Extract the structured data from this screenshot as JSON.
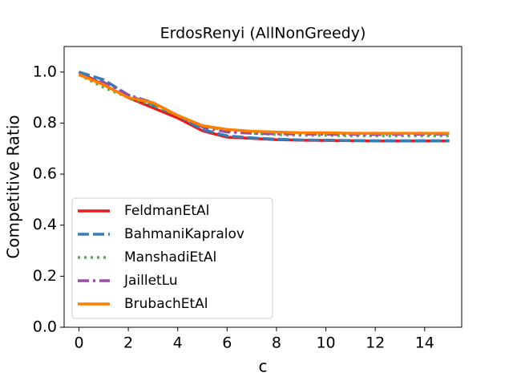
{
  "chart_data": {
    "type": "line",
    "title": "ErdosRenyi (AllNonGreedy)",
    "x_label": "c",
    "y_label": "Competitive Ratio",
    "x": [
      0,
      1,
      2,
      3,
      4,
      5,
      6,
      7,
      8,
      9,
      10,
      11,
      12,
      13,
      14,
      15
    ],
    "series": [
      {
        "name": "FeldmanEtAl",
        "color": "#e41a1c",
        "dash": "solid",
        "values": [
          1.0,
          0.95,
          0.9,
          0.86,
          0.82,
          0.77,
          0.745,
          0.74,
          0.735,
          0.733,
          0.732,
          0.731,
          0.73,
          0.73,
          0.73,
          0.73
        ]
      },
      {
        "name": "BahmaniKapralov",
        "color": "#377eb8",
        "dash": "dashed",
        "values": [
          1.0,
          0.97,
          0.91,
          0.87,
          0.83,
          0.775,
          0.75,
          0.742,
          0.737,
          0.734,
          0.733,
          0.732,
          0.731,
          0.731,
          0.731,
          0.731
        ]
      },
      {
        "name": "ManshadiEtAl",
        "color": "#4daf4a",
        "dash": "dotted",
        "values": [
          0.99,
          0.94,
          0.9,
          0.87,
          0.83,
          0.79,
          0.77,
          0.76,
          0.755,
          0.752,
          0.752,
          0.75,
          0.75,
          0.75,
          0.75,
          0.75
        ]
      },
      {
        "name": "JailletLu",
        "color": "#984ea3",
        "dash": "dashdot",
        "values": [
          0.99,
          0.96,
          0.91,
          0.88,
          0.83,
          0.785,
          0.765,
          0.76,
          0.758,
          0.757,
          0.756,
          0.756,
          0.755,
          0.756,
          0.756,
          0.757
        ]
      },
      {
        "name": "BrubachEtAl",
        "color": "#ff7f00",
        "dash": "solid",
        "values": [
          0.99,
          0.95,
          0.9,
          0.88,
          0.83,
          0.79,
          0.775,
          0.768,
          0.765,
          0.762,
          0.762,
          0.76,
          0.76,
          0.76,
          0.76,
          0.76
        ]
      }
    ],
    "xlim": [
      -0.6,
      15.5
    ],
    "xticks": [
      0,
      2,
      4,
      6,
      8,
      10,
      12,
      14
    ],
    "ylim": [
      0,
      1.1
    ],
    "yticks": [
      {
        "value": 0,
        "label": "0.0"
      },
      0.2,
      0.4,
      0.6,
      0.8,
      {
        "value": 1,
        "label": "1.0"
      }
    ],
    "legend": "lower left"
  }
}
